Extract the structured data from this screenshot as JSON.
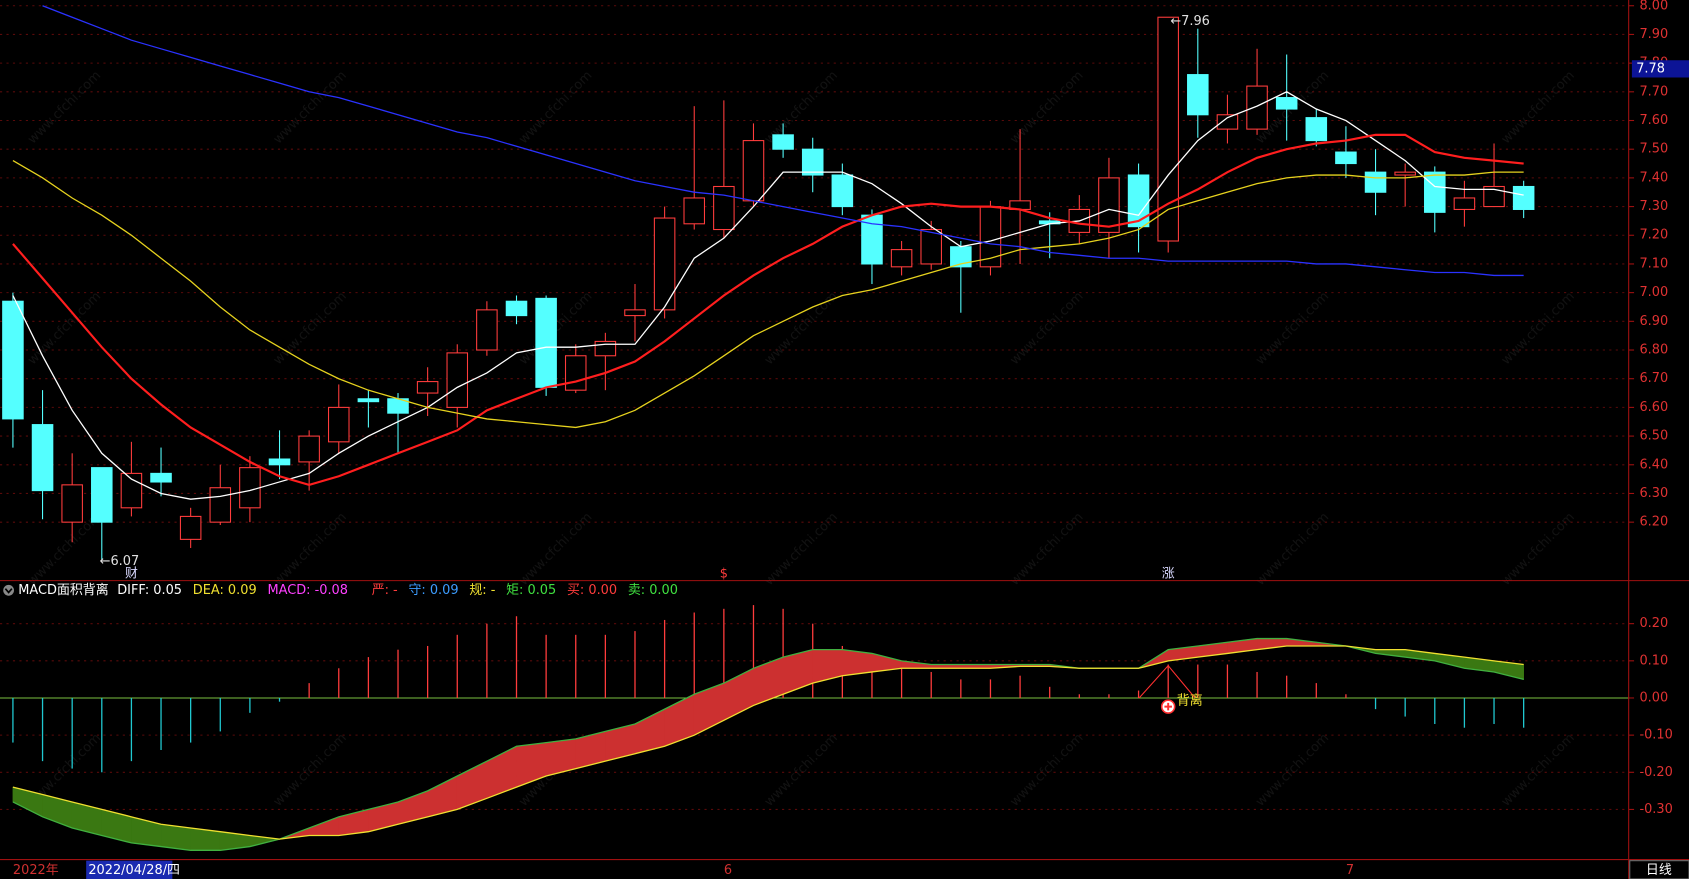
{
  "chart_data": [
    {
      "type": "candlestick",
      "watermark": "www.cfchi.com",
      "categories": [
        "2022年",
        null,
        null,
        null,
        null,
        null,
        null,
        null,
        null,
        null,
        null,
        null,
        null,
        null,
        null,
        null,
        null,
        null,
        null,
        null,
        null,
        null,
        null,
        null,
        "6",
        null,
        null,
        null,
        null,
        null,
        null,
        null,
        null,
        null,
        null,
        null,
        null,
        null,
        null,
        null,
        null,
        null,
        null,
        null,
        null,
        "7",
        null,
        null,
        null,
        null,
        null,
        null
      ],
      "event_labels": [
        null,
        null,
        null,
        null,
        "财",
        null,
        null,
        null,
        null,
        null,
        null,
        null,
        null,
        null,
        null,
        null,
        null,
        null,
        null,
        null,
        null,
        null,
        null,
        null,
        "$",
        null,
        null,
        null,
        null,
        null,
        null,
        null,
        null,
        null,
        null,
        null,
        null,
        null,
        null,
        "涨",
        null,
        null,
        null,
        null,
        null,
        null,
        null,
        null,
        null,
        null,
        null,
        null
      ],
      "open": [
        6.97,
        6.54,
        6.2,
        6.39,
        6.25,
        6.37,
        6.14,
        6.2,
        6.25,
        6.42,
        6.41,
        6.48,
        6.63,
        6.63,
        6.65,
        6.6,
        6.8,
        6.97,
        6.98,
        6.66,
        6.78,
        6.92,
        6.94,
        7.24,
        7.22,
        7.32,
        7.55,
        7.5,
        7.41,
        7.27,
        7.09,
        7.1,
        7.16,
        7.09,
        7.29,
        7.25,
        7.21,
        7.21,
        7.41,
        7.18,
        7.76,
        7.57,
        7.57,
        7.68,
        7.61,
        7.49,
        7.42,
        7.41,
        7.42,
        7.29,
        7.3,
        7.37
      ],
      "close": [
        6.56,
        6.31,
        6.33,
        6.2,
        6.37,
        6.34,
        6.22,
        6.32,
        6.39,
        6.4,
        6.5,
        6.6,
        6.62,
        6.58,
        6.69,
        6.79,
        6.94,
        6.92,
        6.67,
        6.78,
        6.83,
        6.94,
        7.26,
        7.33,
        7.37,
        7.53,
        7.5,
        7.41,
        7.3,
        7.1,
        7.15,
        7.22,
        7.09,
        7.3,
        7.32,
        7.24,
        7.29,
        7.4,
        7.23,
        7.96,
        7.62,
        7.62,
        7.72,
        7.64,
        7.53,
        7.45,
        7.35,
        7.42,
        7.28,
        7.33,
        7.37,
        7.29
      ],
      "high": [
        7.0,
        6.66,
        6.44,
        6.39,
        6.48,
        6.46,
        6.25,
        6.4,
        6.43,
        6.52,
        6.52,
        6.68,
        6.66,
        6.65,
        6.74,
        6.82,
        6.97,
        6.99,
        6.99,
        6.82,
        6.86,
        7.03,
        7.3,
        7.65,
        7.67,
        7.59,
        7.59,
        7.54,
        7.45,
        7.29,
        7.18,
        7.25,
        7.18,
        7.32,
        7.57,
        7.28,
        7.34,
        7.47,
        7.45,
        7.96,
        7.92,
        7.69,
        7.85,
        7.83,
        7.64,
        7.58,
        7.5,
        7.45,
        7.44,
        7.39,
        7.52,
        7.39
      ],
      "low": [
        6.46,
        6.21,
        6.13,
        6.07,
        6.22,
        6.29,
        6.11,
        6.19,
        6.2,
        6.35,
        6.31,
        6.44,
        6.53,
        6.44,
        6.57,
        6.53,
        6.78,
        6.89,
        6.64,
        6.65,
        6.66,
        6.83,
        6.91,
        7.22,
        7.19,
        7.3,
        7.47,
        7.35,
        7.27,
        7.03,
        7.06,
        7.08,
        6.93,
        7.06,
        7.1,
        7.12,
        7.17,
        7.12,
        7.14,
        7.14,
        7.54,
        7.52,
        7.55,
        7.53,
        7.51,
        7.4,
        7.27,
        7.3,
        7.21,
        7.23,
        7.3,
        7.26
      ],
      "up_color": "#ff3c3c",
      "down_color": "#54ffff",
      "series": [
        {
          "color": "#ffffff",
          "values": [
            6.99,
            6.78,
            6.59,
            6.44,
            6.35,
            6.3,
            6.28,
            6.29,
            6.31,
            6.34,
            6.37,
            6.44,
            6.5,
            6.55,
            6.6,
            6.67,
            6.72,
            6.79,
            6.81,
            6.81,
            6.82,
            6.82,
            6.95,
            7.12,
            7.19,
            7.3,
            7.42,
            7.42,
            7.42,
            7.38,
            7.31,
            7.23,
            7.16,
            7.18,
            7.21,
            7.24,
            7.25,
            7.29,
            7.27,
            7.41,
            7.53,
            7.61,
            7.65,
            7.7,
            7.64,
            7.6,
            7.53,
            7.46,
            7.37,
            7.36,
            7.36,
            7.34
          ]
        },
        {
          "color": "#ff1e1e",
          "values": [
            7.17,
            7.05,
            6.93,
            6.81,
            6.7,
            6.61,
            6.53,
            6.47,
            6.41,
            6.36,
            6.33,
            6.36,
            6.4,
            6.44,
            6.48,
            6.52,
            6.59,
            6.63,
            6.67,
            6.69,
            6.72,
            6.76,
            6.83,
            6.91,
            6.99,
            7.06,
            7.12,
            7.17,
            7.23,
            7.27,
            7.3,
            7.31,
            7.3,
            7.3,
            7.29,
            7.26,
            7.24,
            7.23,
            7.25,
            7.31,
            7.36,
            7.42,
            7.47,
            7.5,
            7.52,
            7.53,
            7.55,
            7.55,
            7.49,
            7.47,
            7.46,
            7.45
          ]
        },
        {
          "color": "#e6d21e",
          "values": [
            7.46,
            7.4,
            7.33,
            7.27,
            7.2,
            7.12,
            7.04,
            6.95,
            6.87,
            6.81,
            6.75,
            6.7,
            6.66,
            6.63,
            6.6,
            6.58,
            6.56,
            6.55,
            6.54,
            6.53,
            6.55,
            6.59,
            6.65,
            6.71,
            6.78,
            6.85,
            6.9,
            6.95,
            6.99,
            7.01,
            7.04,
            7.07,
            7.1,
            7.12,
            7.15,
            7.16,
            7.17,
            7.19,
            7.22,
            7.29,
            7.32,
            7.35,
            7.38,
            7.4,
            7.41,
            7.41,
            7.4,
            7.4,
            7.41,
            7.41,
            7.42,
            7.42
          ]
        },
        {
          "color": "#2a32ff",
          "values": [
            null,
            8.0,
            7.96,
            7.92,
            7.88,
            7.85,
            7.82,
            7.79,
            7.76,
            7.73,
            7.7,
            7.68,
            7.65,
            7.62,
            7.59,
            7.56,
            7.54,
            7.51,
            7.48,
            7.45,
            7.42,
            7.39,
            7.37,
            7.35,
            7.34,
            7.32,
            7.3,
            7.28,
            7.26,
            7.24,
            7.23,
            7.21,
            7.19,
            7.17,
            7.16,
            7.14,
            7.13,
            7.12,
            7.12,
            7.11,
            7.11,
            7.11,
            7.11,
            7.11,
            7.1,
            7.1,
            7.09,
            7.08,
            7.07,
            7.07,
            7.06,
            7.06
          ]
        }
      ],
      "ylim": [
        6.0,
        8.02
      ],
      "yticks": [
        {
          "value": 8.0,
          "label": "8.00"
        },
        {
          "value": 7.9,
          "label": "7.90"
        },
        {
          "value": 7.8,
          "label": "7.80"
        },
        {
          "value": 7.7,
          "label": "7.70"
        },
        {
          "value": 7.6,
          "label": "7.60"
        },
        {
          "value": 7.5,
          "label": "7.50"
        },
        {
          "value": 7.4,
          "label": "7.40"
        },
        {
          "value": 7.3,
          "label": "7.30"
        },
        {
          "value": 7.2,
          "label": "7.20"
        },
        {
          "value": 7.1,
          "label": "7.10"
        },
        {
          "value": 7.0,
          "label": "7.00"
        },
        {
          "value": 6.9,
          "label": "6.90"
        },
        {
          "value": 6.8,
          "label": "6.80"
        },
        {
          "value": 6.7,
          "label": "6.70"
        },
        {
          "value": 6.6,
          "label": "6.60"
        },
        {
          "value": 6.5,
          "label": "6.50"
        },
        {
          "value": 6.4,
          "label": "6.40"
        },
        {
          "value": 6.3,
          "label": "6.30"
        },
        {
          "value": 6.2,
          "label": "6.20"
        }
      ],
      "grid": true,
      "price_marker": {
        "value": 7.78,
        "label": "7.78"
      },
      "low_label": "←6.07",
      "high_label": "←7.96"
    },
    {
      "type": "macd",
      "title": "MACD面积背离",
      "legend_items": [
        {
          "text": "DIFF: 0.05",
          "color": "#ffffff"
        },
        {
          "text": "DEA: 0.09",
          "color": "#f0e030"
        },
        {
          "text": "MACD: -0.08",
          "color": "#ff40ff"
        },
        {
          "text": "严: -",
          "color": "#ff3c3c"
        },
        {
          "text": "守: 0.09",
          "color": "#3c9cff"
        },
        {
          "text": "规: -",
          "color": "#f0e030"
        },
        {
          "text": "矩: 0.05",
          "color": "#40e040"
        },
        {
          "text": "买: 0.00",
          "color": "#ff3c3c"
        },
        {
          "text": "卖: 0.00",
          "color": "#40e040"
        }
      ],
      "values": [
        -0.12,
        -0.17,
        -0.19,
        -0.2,
        -0.17,
        -0.14,
        -0.12,
        -0.09,
        -0.04,
        -0.01,
        0.04,
        0.08,
        0.11,
        0.13,
        0.14,
        0.17,
        0.2,
        0.22,
        0.17,
        0.17,
        0.17,
        0.18,
        0.21,
        0.23,
        0.24,
        0.25,
        0.24,
        0.2,
        0.14,
        0.11,
        0.08,
        0.07,
        0.05,
        0.05,
        0.06,
        0.03,
        0.01,
        0.01,
        0.02,
        0.09,
        0.09,
        0.09,
        0.07,
        0.06,
        0.04,
        0.01,
        -0.03,
        -0.05,
        -0.07,
        -0.08,
        -0.07,
        -0.08
      ],
      "up_color": "#ff3c3c",
      "down_color": "#20c8d0",
      "series": [
        {
          "color": "#40b040",
          "values": [
            -0.28,
            -0.32,
            -0.35,
            -0.37,
            -0.39,
            -0.4,
            -0.41,
            -0.41,
            -0.4,
            -0.38,
            -0.35,
            -0.32,
            -0.3,
            -0.28,
            -0.25,
            -0.21,
            -0.17,
            -0.13,
            -0.12,
            -0.11,
            -0.09,
            -0.07,
            -0.03,
            0.01,
            0.04,
            0.08,
            0.11,
            0.13,
            0.13,
            0.12,
            0.1,
            0.09,
            0.09,
            0.09,
            0.09,
            0.09,
            0.08,
            0.08,
            0.08,
            0.13,
            0.14,
            0.15,
            0.16,
            0.16,
            0.15,
            0.14,
            0.12,
            0.11,
            0.1,
            0.08,
            0.07,
            0.05
          ]
        },
        {
          "color": "#f0e030",
          "values": [
            -0.24,
            -0.26,
            -0.28,
            -0.3,
            -0.32,
            -0.34,
            -0.35,
            -0.36,
            -0.37,
            -0.38,
            -0.37,
            -0.37,
            -0.36,
            -0.34,
            -0.32,
            -0.3,
            -0.27,
            -0.24,
            -0.21,
            -0.19,
            -0.17,
            -0.15,
            -0.13,
            -0.1,
            -0.06,
            -0.02,
            0.01,
            0.04,
            0.06,
            0.07,
            0.08,
            0.08,
            0.08,
            0.08,
            0.085,
            0.085,
            0.08,
            0.08,
            0.08,
            0.1,
            0.11,
            0.12,
            0.13,
            0.14,
            0.14,
            0.14,
            0.13,
            0.13,
            0.12,
            0.11,
            0.1,
            0.09
          ]
        }
      ],
      "band_up_color": "#cc3030",
      "band_down_color": "#3a7812",
      "ylim": [
        -0.435,
        0.313
      ],
      "yticks": [
        {
          "value": 0.2,
          "label": "0.20"
        },
        {
          "value": 0.1,
          "label": "0.10"
        },
        {
          "value": 0,
          "label": "0.00"
        },
        {
          "value": -0.1,
          "label": "-0.10"
        },
        {
          "value": -0.2,
          "label": "-0.20"
        },
        {
          "value": -0.3,
          "label": "-0.30"
        }
      ],
      "grid": true,
      "annotation": "背离"
    }
  ],
  "cursor_date": "2022/04/28/四",
  "period": "日线"
}
